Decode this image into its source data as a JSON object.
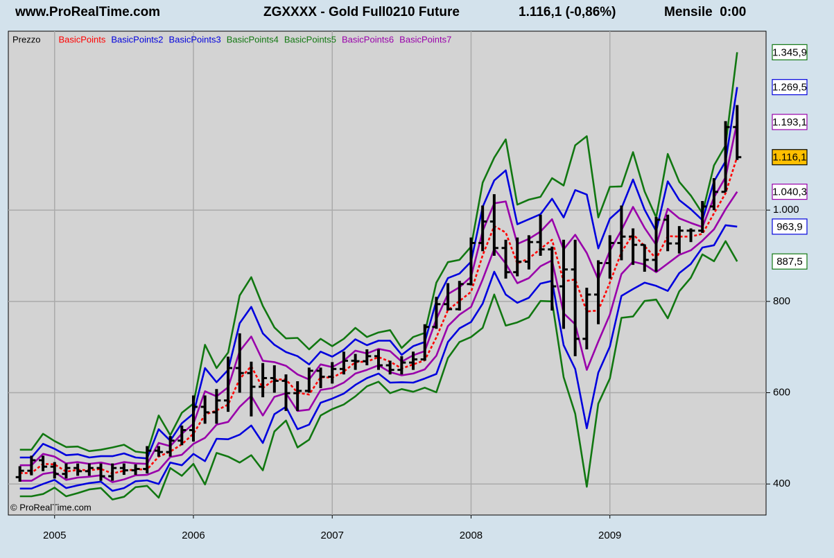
{
  "chart_data": {
    "type": "ohlc",
    "header": {
      "site": "www.ProRealTime.com",
      "instrument": "ZGXXXX - Gold Full0210 Future",
      "quote": "1.116,1 (-0,86%)",
      "period": "Mensile  0:00"
    },
    "watermark": "© ProRealTime.com",
    "x": [
      -3,
      -2,
      -1,
      0,
      1,
      2,
      3,
      4,
      5,
      6,
      7,
      8,
      9,
      10,
      11,
      12,
      13,
      14,
      15,
      16,
      17,
      18,
      19,
      20,
      21,
      22,
      23,
      24,
      25,
      26,
      27,
      28,
      29,
      30,
      31,
      32,
      33,
      34,
      35,
      36,
      37,
      38,
      39,
      40,
      41,
      42,
      43,
      44,
      45,
      46,
      47,
      48,
      49,
      50,
      51,
      52,
      53,
      54,
      55,
      56,
      57,
      58,
      59
    ],
    "xlim": [
      -4,
      61.5
    ],
    "xticks": [
      {
        "value": 0,
        "label": "2005"
      },
      {
        "value": 12,
        "label": "2006"
      },
      {
        "value": 24,
        "label": "2007"
      },
      {
        "value": 36,
        "label": "2008"
      },
      {
        "value": 48,
        "label": "2009"
      }
    ],
    "ylim": [
      332,
      1392
    ],
    "yticks": [
      400,
      600,
      800,
      {
        "value": 1000,
        "label": "1.000"
      }
    ],
    "grid": true,
    "price": {
      "name": "Prezzo",
      "color": "#000000",
      "last_label": "1.116,1",
      "label_color": "#ffc000",
      "open": [
        415,
        429,
        452,
        438,
        422,
        435,
        428,
        435,
        417,
        435,
        430,
        433,
        473,
        470,
        495,
        518,
        569,
        557,
        583,
        654,
        643,
        613,
        632,
        626,
        599,
        604,
        648,
        635,
        652,
        670,
        669,
        680,
        660,
        650,
        666,
        673,
        744,
        794,
        783,
        838,
        928,
        975,
        917,
        864,
        887,
        930,
        914,
        833,
        870,
        718,
        815,
        884,
        928,
        942,
        924,
        891,
        979,
        927,
        955,
        955,
        1008,
        1040,
        1182
      ],
      "high": [
        439,
        462,
        462,
        448,
        445,
        445,
        445,
        445,
        445,
        445,
        443,
        483,
        483,
        505,
        528,
        594,
        594,
        608,
        679,
        730,
        668,
        665,
        660,
        640,
        625,
        655,
        655,
        667,
        690,
        685,
        695,
        695,
        670,
        680,
        690,
        750,
        810,
        840,
        845,
        940,
        1010,
        1035,
        935,
        940,
        945,
        990,
        920,
        935,
        935,
        830,
        890,
        945,
        1010,
        960,
        925,
        985,
        990,
        965,
        960,
        1020,
        1070,
        1195,
        1230
      ],
      "low": [
        405,
        419,
        428,
        412,
        412,
        418,
        418,
        407,
        407,
        420,
        420,
        423,
        460,
        460,
        485,
        493,
        532,
        532,
        558,
        600,
        548,
        590,
        600,
        560,
        560,
        600,
        610,
        620,
        640,
        650,
        660,
        650,
        640,
        640,
        650,
        670,
        740,
        780,
        780,
        835,
        910,
        900,
        850,
        855,
        870,
        900,
        780,
        740,
        680,
        695,
        750,
        850,
        890,
        880,
        865,
        865,
        910,
        905,
        930,
        950,
        1000,
        1040,
        1110
      ],
      "close": [
        429,
        452,
        438,
        422,
        435,
        428,
        435,
        417,
        435,
        430,
        433,
        473,
        470,
        495,
        518,
        569,
        557,
        583,
        654,
        643,
        613,
        632,
        626,
        599,
        604,
        648,
        635,
        652,
        670,
        669,
        680,
        660,
        650,
        666,
        673,
        744,
        794,
        783,
        838,
        928,
        975,
        917,
        864,
        887,
        930,
        914,
        833,
        870,
        718,
        815,
        884,
        928,
        942,
        924,
        891,
        979,
        927,
        955,
        955,
        1008,
        1040,
        1182,
        1116
      ]
    },
    "series": [
      {
        "name": "BasicPoints",
        "color": "#ff0000",
        "dashed": true,
        "values": [
          424,
          424,
          444,
          443,
          427,
          431,
          430,
          433,
          423,
          429,
          432,
          432,
          460,
          471,
          487,
          510,
          552,
          561,
          574,
          630,
          658,
          610,
          629,
          629,
          600,
          596,
          634,
          633,
          646,
          667,
          668,
          678,
          668,
          653,
          662,
          671,
          721,
          781,
          801,
          821,
          901,
          965,
          951,
          883,
          894,
          915,
          935,
          844,
          848,
          778,
          780,
          841,
          908,
          947,
          921,
          894,
          943,
          942,
          942,
          948,
          993,
          1037,
          1116.7
        ]
      },
      {
        "name": "BasicPoints2",
        "color": "#0000dd",
        "last_label": "1.269,5",
        "values": [
          458,
          458,
          488,
          477,
          463,
          465,
          458,
          461,
          461,
          467,
          458,
          456,
          520,
          495,
          533,
          554,
          654,
          623,
          650,
          752,
          788,
          730,
          705,
          689,
          680,
          662,
          690,
          679,
          694,
          717,
          704,
          714,
          714,
          683,
          702,
          711,
          801,
          851,
          861,
          887,
          1007,
          1065,
          1087,
          969,
          980,
          991,
          1025,
          984,
          1044,
          1034,
          916,
          981,
          1004,
          1067,
          1001,
          954,
          1063,
          1022,
          1002,
          978,
          1063,
          1107,
          1269.5
        ]
      },
      {
        "name": "BasicPoints3",
        "color": "#0000dd",
        "last_label": "963,9",
        "values": [
          390,
          390,
          400,
          409,
          391,
          397,
          402,
          405,
          385,
          391,
          406,
          408,
          400,
          447,
          441,
          466,
          450,
          499,
          498,
          508,
          528,
          490,
          553,
          569,
          520,
          530,
          578,
          587,
          598,
          617,
          632,
          642,
          622,
          623,
          622,
          631,
          641,
          711,
          741,
          755,
          795,
          865,
          815,
          797,
          808,
          839,
          845,
          704,
          652,
          522,
          644,
          701,
          812,
          827,
          841,
          834,
          823,
          862,
          882,
          918,
          923,
          967,
          963.9
        ]
      },
      {
        "name": "BasicPoints4",
        "color": "#117711",
        "last_label": "1.345,9",
        "values": [
          475,
          475,
          510,
          494,
          481,
          482,
          472,
          475,
          480,
          486,
          471,
          468,
          550,
          507,
          556,
          576,
          705,
          654,
          688,
          813,
          853,
          790,
          743,
          719,
          720,
          695,
          718,
          702,
          718,
          742,
          722,
          732,
          737,
          698,
          722,
          731,
          841,
          886,
          891,
          920,
          1060,
          1115,
          1155,
          1012,
          1023,
          1029,
          1070,
          1054,
          1142,
          1162,
          984,
          1051,
          1052,
          1127,
          1041,
          984,
          1123,
          1062,
          1032,
          993,
          1098,
          1142,
          1345.9
        ]
      },
      {
        "name": "BasicPoints5",
        "color": "#117711",
        "last_label": "887,5",
        "values": [
          373,
          373,
          378,
          392,
          373,
          380,
          388,
          391,
          366,
          372,
          393,
          396,
          370,
          435,
          418,
          444,
          399,
          468,
          460,
          447,
          463,
          430,
          515,
          539,
          480,
          497,
          550,
          564,
          574,
          592,
          614,
          624,
          599,
          608,
          602,
          611,
          601,
          676,
          711,
          722,
          742,
          815,
          747,
          754,
          765,
          801,
          800,
          634,
          554,
          394,
          576,
          631,
          764,
          767,
          801,
          804,
          763,
          822,
          852,
          903,
          888,
          932,
          887.5
        ]
      },
      {
        "name": "BasicPoints6",
        "color": "#9900aa",
        "last_label": "1.193,1",
        "values": [
          441,
          441,
          466,
          460,
          445,
          448,
          444,
          447,
          442,
          448,
          445,
          444,
          490,
          483,
          510,
          532,
          603,
          592,
          612,
          691,
          723,
          670,
          667,
          659,
          640,
          629,
          662,
          656,
          670,
          692,
          686,
          696,
          691,
          668,
          682,
          691,
          761,
          816,
          831,
          854,
          954,
          1015,
          1019,
          926,
          937,
          953,
          980,
          914,
          946,
          906,
          848,
          911,
          956,
          1007,
          961,
          924,
          1003,
          982,
          972,
          963,
          1028,
          1072,
          1193.1
        ]
      },
      {
        "name": "BasicPoints7",
        "color": "#9900aa",
        "last_label": "1.040,3",
        "values": [
          407,
          407,
          422,
          426,
          409,
          414,
          416,
          419,
          404,
          410,
          419,
          420,
          430,
          459,
          464,
          488,
          501,
          530,
          536,
          569,
          593,
          550,
          591,
          599,
          560,
          563,
          606,
          610,
          622,
          642,
          650,
          660,
          645,
          638,
          642,
          651,
          681,
          746,
          771,
          788,
          848,
          915,
          883,
          840,
          851,
          877,
          890,
          774,
          750,
          650,
          712,
          771,
          860,
          887,
          881,
          864,
          883,
          902,
          912,
          933,
          958,
          1002,
          1040.3
        ]
      }
    ]
  }
}
